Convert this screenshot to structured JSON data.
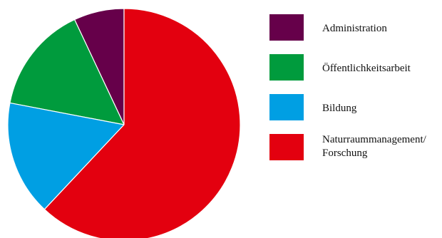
{
  "chart_data": {
    "type": "pie",
    "categories": [
      "Administration",
      "Öffentlichkeitsarbeit",
      "Bildung",
      "Naturraummanagement/\nForschung"
    ],
    "values": [
      7,
      15,
      16,
      62
    ],
    "colors": [
      "#66004a",
      "#009b3d",
      "#009fe3",
      "#e3000f"
    ],
    "start_angle_deg": 0,
    "direction": "counterclockwise",
    "legend_position": "right",
    "slice_border_color": "#ffffff"
  }
}
